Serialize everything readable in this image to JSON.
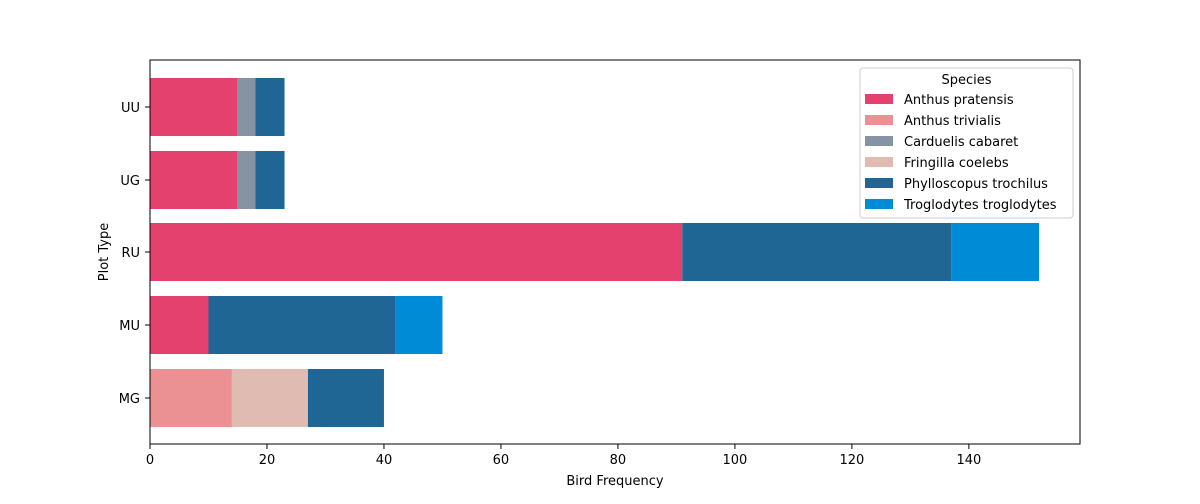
{
  "chart_data": {
    "type": "bar",
    "orientation": "horizontal",
    "stacked": true,
    "categories": [
      "MG",
      "MU",
      "RU",
      "UG",
      "UU"
    ],
    "series": [
      {
        "name": "Anthus pratensis",
        "color": "#e5416e",
        "values": [
          0,
          10,
          91,
          15,
          15
        ]
      },
      {
        "name": "Anthus trivialis",
        "color": "#eb9194",
        "values": [
          14,
          0,
          0,
          0,
          0
        ]
      },
      {
        "name": "Carduelis cabaret",
        "color": "#8593a3",
        "values": [
          0,
          0,
          0,
          3,
          3
        ]
      },
      {
        "name": "Fringilla coelebs",
        "color": "#e0bbb1",
        "values": [
          13,
          0,
          0,
          0,
          0
        ]
      },
      {
        "name": "Phylloscopus trochilus",
        "color": "#1f6694",
        "values": [
          13,
          32,
          46,
          5,
          5
        ]
      },
      {
        "name": "Troglodytes troglodytes",
        "color": "#008bd6",
        "values": [
          0,
          8,
          15,
          0,
          0
        ]
      }
    ],
    "xlabel": "Bird Frequency",
    "ylabel": "Plot Type",
    "xlim": [
      0,
      159
    ],
    "xticks": [
      0,
      20,
      40,
      60,
      80,
      100,
      120,
      140
    ],
    "legend": {
      "title": "Species",
      "placement": "top-right"
    },
    "grid": false
  }
}
